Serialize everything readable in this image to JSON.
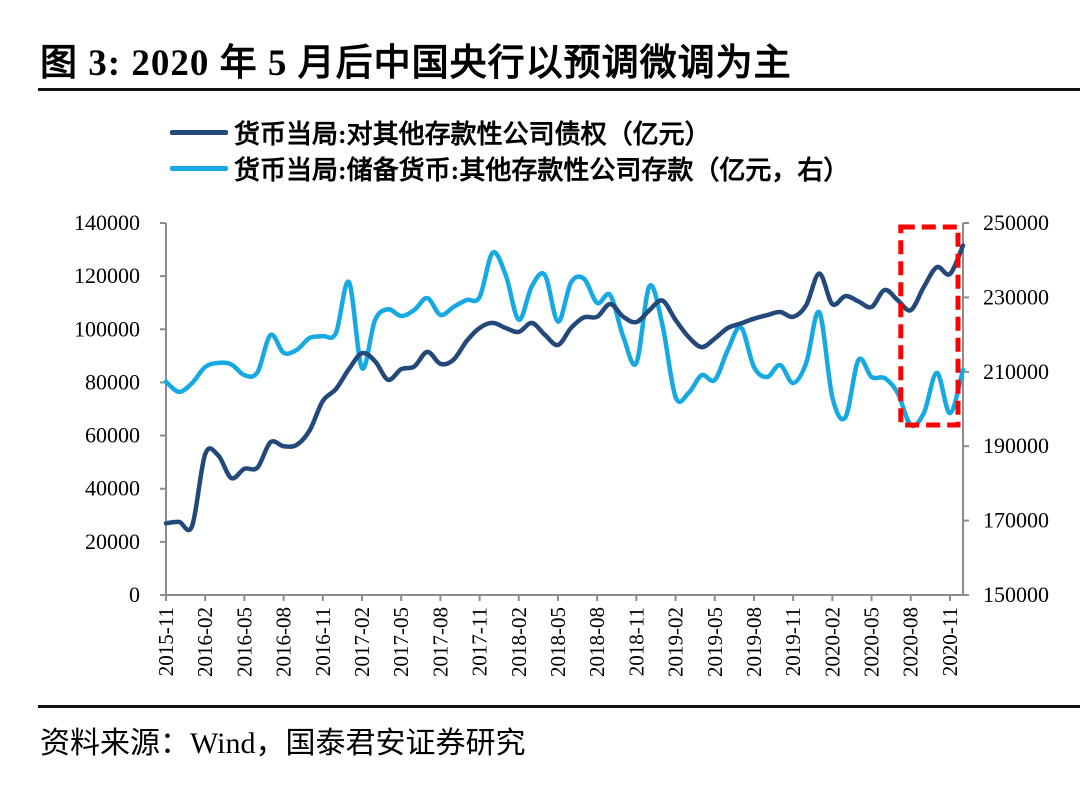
{
  "title": "图 3:  2020 年 5 月后中国央行以预调微调为主",
  "source": "资料来源：Wind，国泰君安证券研究",
  "chart_data": {
    "type": "line",
    "title": "图 3:  2020 年 5 月后中国央行以预调微调为主",
    "xlabel": "",
    "ylabel_left": "",
    "ylabel_right": "",
    "legend_position": "top-center",
    "grid": false,
    "x": [
      "2015-11",
      "2015-12",
      "2016-01",
      "2016-02",
      "2016-03",
      "2016-04",
      "2016-05",
      "2016-06",
      "2016-07",
      "2016-08",
      "2016-09",
      "2016-10",
      "2016-11",
      "2016-12",
      "2017-01",
      "2017-02",
      "2017-03",
      "2017-04",
      "2017-05",
      "2017-06",
      "2017-07",
      "2017-08",
      "2017-09",
      "2017-10",
      "2017-11",
      "2017-12",
      "2018-01",
      "2018-02",
      "2018-03",
      "2018-04",
      "2018-05",
      "2018-06",
      "2018-07",
      "2018-08",
      "2018-09",
      "2018-10",
      "2018-11",
      "2018-12",
      "2019-01",
      "2019-02",
      "2019-03",
      "2019-04",
      "2019-05",
      "2019-06",
      "2019-07",
      "2019-08",
      "2019-09",
      "2019-10",
      "2019-11",
      "2019-12",
      "2020-01",
      "2020-02",
      "2020-03",
      "2020-04",
      "2020-05",
      "2020-06",
      "2020-07",
      "2020-08",
      "2020-09",
      "2020-10",
      "2020-11",
      "2020-12"
    ],
    "x_tick_labels": [
      "2015-11",
      "2016-02",
      "2016-05",
      "2016-08",
      "2016-11",
      "2017-02",
      "2017-05",
      "2017-08",
      "2017-11",
      "2018-02",
      "2018-05",
      "2018-08",
      "2018-11",
      "2019-02",
      "2019-05",
      "2019-08",
      "2019-11",
      "2020-02",
      "2020-05",
      "2020-08",
      "2020-11"
    ],
    "y_left": {
      "ylim": [
        0,
        140000
      ],
      "ticks": [
        "0",
        "20000",
        "40000",
        "60000",
        "80000",
        "100000",
        "120000",
        "140000"
      ]
    },
    "y_right": {
      "ylim": [
        150000,
        250000
      ],
      "ticks": [
        "150000",
        "170000",
        "190000",
        "210000",
        "230000",
        "250000"
      ]
    },
    "series": [
      {
        "name": "货币当局:对其他存款性公司债权（亿元）",
        "axis": "left",
        "color": "#22497a",
        "values": [
          27000,
          27500,
          26000,
          53000,
          52500,
          44000,
          47500,
          48000,
          57500,
          56000,
          56500,
          62000,
          73000,
          77500,
          85000,
          91000,
          88000,
          81000,
          85000,
          86000,
          91500,
          87000,
          88500,
          95500,
          100500,
          102400,
          100500,
          99000,
          102400,
          97900,
          94100,
          100500,
          104500,
          104700,
          109500,
          104700,
          102700,
          107200,
          110800,
          103500,
          97100,
          93300,
          96500,
          100500,
          102200,
          104000,
          105300,
          106500,
          104700,
          109100,
          121000,
          109500,
          112500,
          110500,
          108400,
          114800,
          111000,
          107200,
          115900,
          123400,
          120800,
          131500
        ]
      },
      {
        "name": "货币当局:储备货币:其他存款性公司存款（亿元，右）",
        "axis": "right",
        "color": "#17a9e1",
        "values": [
          207300,
          204600,
          207000,
          211300,
          212400,
          212000,
          209100,
          209900,
          219900,
          215100,
          215900,
          219100,
          219600,
          220400,
          234100,
          211000,
          223900,
          226800,
          225000,
          226600,
          229800,
          225300,
          227400,
          229300,
          230100,
          242000,
          236000,
          224000,
          233000,
          236000,
          223500,
          234000,
          235000,
          228500,
          230600,
          219400,
          212400,
          233000,
          222500,
          203200,
          204300,
          209100,
          207800,
          215900,
          222000,
          211300,
          208600,
          211800,
          207000,
          212400,
          226000,
          203200,
          197800,
          213200,
          208600,
          208300,
          204300,
          195700,
          198900,
          209700,
          198900,
          210500
        ]
      }
    ],
    "annotations": [
      {
        "type": "dashed-box",
        "color": "#ff0000",
        "x_range": [
          "2020-09",
          "2020-12"
        ],
        "y_range_left": [
          64000,
          140000
        ]
      }
    ]
  }
}
